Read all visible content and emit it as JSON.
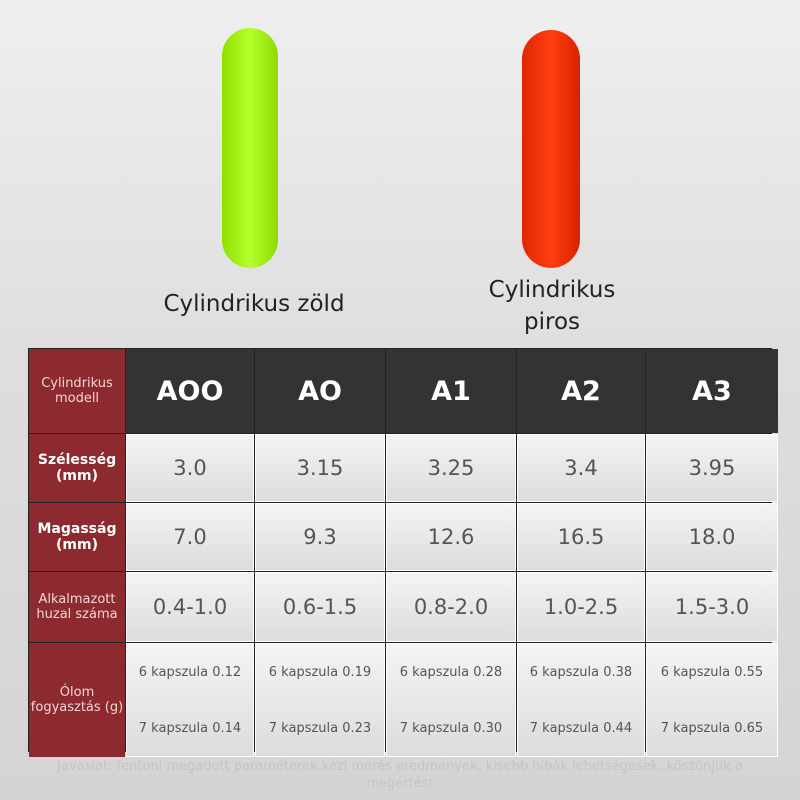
{
  "products": [
    {
      "label": "Cylindrikus zöld"
    },
    {
      "label": "Cylindrikus piros"
    }
  ],
  "table": {
    "header": [
      "Cylindrikus modell",
      "AOO",
      "AO",
      "A1",
      "A2",
      "A3"
    ],
    "rows": [
      [
        "Szélesség (mm)",
        "3.0",
        "3.15",
        "3.25",
        "3.4",
        "3.95"
      ],
      [
        "Magasság (mm)",
        "7.0",
        "9.3",
        "12.6",
        "16.5",
        "18.0"
      ],
      [
        "Alkalmazott huzal száma",
        "0.4-1.0",
        "0.6-1.5",
        "0.8-2.0",
        "1.0-2.5",
        "1.5-3.0"
      ],
      [
        "Ólom fogyasztás (g)",
        [
          "6 kapszula 0.12",
          "7 kapszula 0.14"
        ],
        [
          "6 kapszula 0.19",
          "7 kapszula 0.23"
        ],
        [
          "6 kapszula 0.28",
          "7 kapszula 0.30"
        ],
        [
          "6 kapszula 0.38",
          "7 kapszula 0.44"
        ],
        [
          "6 kapszula 0.55",
          "7 kapszula 0.65"
        ]
      ]
    ]
  },
  "footer": "Javaslat: fentoni megadott paraméterek kézi mérés eredmények, kisebb hibák lehetségesek, köszönjük a megértést"
}
